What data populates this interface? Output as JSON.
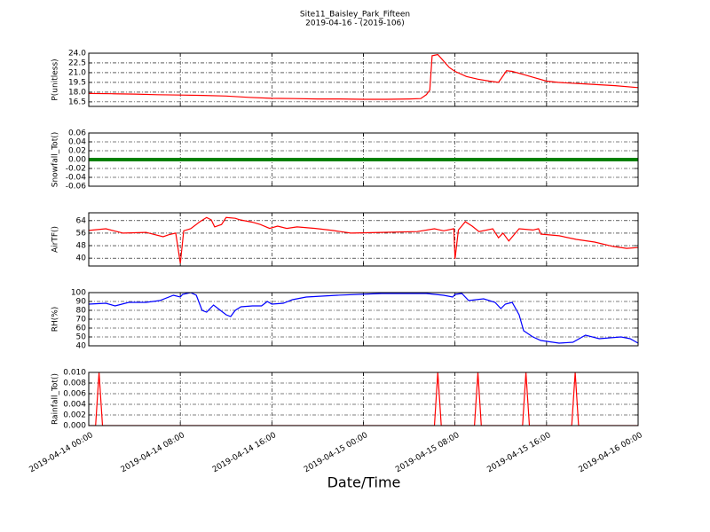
{
  "title": "Site11_Baisley_Park_Fifteen",
  "subtitle": "2019-04-16 - (2019-106)",
  "xlabel": "Date/Time",
  "xlim": [
    0,
    48
  ],
  "xticks": [
    {
      "value": 0,
      "label": "2019-04-14 00:00"
    },
    {
      "value": 8,
      "label": "2019-04-14 08:00"
    },
    {
      "value": 16,
      "label": "2019-04-14 16:00"
    },
    {
      "value": 24,
      "label": "2019-04-15 00:00"
    },
    {
      "value": 32,
      "label": "2019-04-15 08:00"
    },
    {
      "value": 40,
      "label": "2019-04-15 16:00"
    },
    {
      "value": 48,
      "label": "2019-04-16 00:00"
    }
  ],
  "chart_data": [
    {
      "type": "line",
      "ylabel": "P(unitless)",
      "color": "#ff0000",
      "grid": true,
      "ylim": [
        15.8,
        24.0
      ],
      "yticks": [
        {
          "value": 16.5,
          "label": "16.5"
        },
        {
          "value": 18.0,
          "label": "18.0"
        },
        {
          "value": 19.5,
          "label": "19.5"
        },
        {
          "value": 21.0,
          "label": "21.0"
        },
        {
          "value": 22.5,
          "label": "22.5"
        },
        {
          "value": 24.0,
          "label": "24.0"
        }
      ],
      "x": [
        0,
        2,
        4,
        6,
        8,
        10,
        12,
        14,
        16,
        18,
        20,
        22,
        24,
        26,
        28,
        29,
        29.5,
        29.8,
        30,
        30.5,
        31,
        31.5,
        32,
        33,
        34,
        35,
        35.8,
        36.2,
        36.5,
        37,
        38,
        39,
        40,
        41,
        42,
        43,
        44,
        46,
        48
      ],
      "values": [
        17.8,
        17.75,
        17.7,
        17.6,
        17.55,
        17.5,
        17.4,
        17.2,
        17.05,
        17.0,
        16.95,
        16.95,
        16.9,
        16.9,
        16.95,
        17.0,
        17.6,
        18.3,
        23.6,
        23.8,
        22.8,
        21.8,
        21.2,
        20.4,
        20.0,
        19.7,
        19.5,
        20.5,
        21.3,
        21.2,
        20.7,
        20.2,
        19.7,
        19.5,
        19.4,
        19.3,
        19.2,
        19.0,
        18.7
      ]
    },
    {
      "type": "line",
      "ylabel": "Snowfall_Tot()",
      "color": "#008000",
      "grid": true,
      "ylim": [
        -0.06,
        0.06
      ],
      "yticks": [
        -0.06,
        -0.04,
        -0.02,
        {
          "value": 0,
          "label": "0.00"
        },
        0.02,
        0.04,
        0.06
      ],
      "x": [
        0,
        2,
        4,
        6,
        8,
        10,
        12,
        14,
        16,
        18,
        20,
        22,
        24,
        26,
        28,
        30,
        32,
        34,
        36,
        38,
        40,
        42,
        44,
        46,
        48
      ],
      "values": [
        0,
        0,
        0,
        0,
        0,
        0,
        0,
        0,
        0,
        0,
        0,
        0,
        0,
        0,
        0,
        0,
        0,
        0,
        0,
        0,
        0,
        0,
        0,
        0,
        0
      ]
    },
    {
      "type": "line",
      "ylabel": "AirTF()",
      "color": "#ff0000",
      "grid": true,
      "ylim": [
        35,
        69
      ],
      "yticks": [
        40,
        48,
        56,
        64
      ],
      "x": [
        0,
        1.5,
        3,
        5,
        6.5,
        7,
        7.6,
        8,
        8.3,
        8.9,
        9.7,
        10.3,
        10.7,
        11,
        11.6,
        12,
        12.8,
        13.2,
        14.3,
        15,
        15.8,
        16.5,
        17.3,
        18.2,
        19.8,
        21.3,
        22.9,
        25.6,
        28.7,
        30.2,
        31,
        31.9,
        32,
        32.3,
        32.9,
        33.5,
        34.1,
        35.3,
        35.8,
        36.2,
        36.7,
        37.6,
        38.8,
        39.3,
        39.5,
        41.1,
        42.6,
        44.2,
        45.8,
        47,
        48
      ],
      "values": [
        57.7,
        58.8,
        56,
        56.5,
        53.7,
        55,
        56,
        36.7,
        57.5,
        58.8,
        63.3,
        66,
        64.5,
        60,
        61.5,
        66,
        65.5,
        64.5,
        63,
        61.5,
        59,
        60.5,
        59,
        60,
        59,
        57.7,
        56,
        56.5,
        57,
        58.8,
        57.5,
        58.8,
        39.5,
        58,
        63.3,
        60.5,
        57,
        58.8,
        53,
        56,
        51,
        58.8,
        58,
        58.8,
        55.4,
        54.3,
        52,
        50.3,
        47.5,
        46.3,
        46.8
      ]
    },
    {
      "type": "line",
      "ylabel": "RH(%)",
      "color": "#0000ff",
      "grid": true,
      "ylim": [
        40,
        100
      ],
      "yticks": [
        40,
        50,
        60,
        70,
        80,
        90,
        100
      ],
      "x": [
        0,
        1.5,
        2.3,
        3.5,
        5,
        6.2,
        7.4,
        8,
        8.2,
        8.9,
        9.4,
        9.9,
        10.3,
        10.9,
        11.5,
        12,
        12.4,
        12.8,
        13.3,
        14.3,
        15.1,
        15.6,
        16,
        17,
        17.8,
        19,
        21.7,
        25.6,
        29.5,
        31,
        31.8,
        32,
        32.6,
        33.2,
        34.5,
        35.5,
        36,
        36.4,
        37,
        37.6,
        38,
        38.8,
        39.5,
        41.1,
        42.3,
        43.4,
        44.6,
        46.5,
        47.3,
        48
      ],
      "values": [
        87,
        88,
        85,
        89,
        89,
        91,
        97,
        95,
        98,
        100,
        97,
        80,
        78,
        86,
        80,
        75,
        73,
        80,
        84,
        85,
        85,
        90,
        87,
        88,
        92,
        95,
        97,
        99,
        99,
        97,
        95,
        98,
        99,
        91,
        93,
        89,
        82,
        87,
        89,
        75,
        57,
        50,
        46,
        43,
        44,
        52,
        48,
        50,
        48,
        43
      ]
    },
    {
      "type": "line",
      "ylabel": "Rainfall_Tot()",
      "color": "#ff0000",
      "grid": true,
      "ylim": [
        0,
        0.01
      ],
      "yticks": [
        {
          "value": 0,
          "label": "0.000"
        },
        0.002,
        0.004,
        0.006,
        0.008,
        {
          "value": 0.01,
          "label": "0.010"
        }
      ],
      "x": [
        0,
        0.6,
        0.9,
        1.2,
        30.2,
        30.5,
        30.8,
        33.7,
        34,
        34.3,
        37.9,
        38.2,
        38.5,
        42.2,
        42.5,
        42.8,
        48
      ],
      "values": [
        0,
        0,
        0.01,
        0,
        0,
        0.01,
        0,
        0,
        0.01,
        0,
        0,
        0.01,
        0,
        0,
        0.01,
        0,
        0
      ]
    }
  ]
}
